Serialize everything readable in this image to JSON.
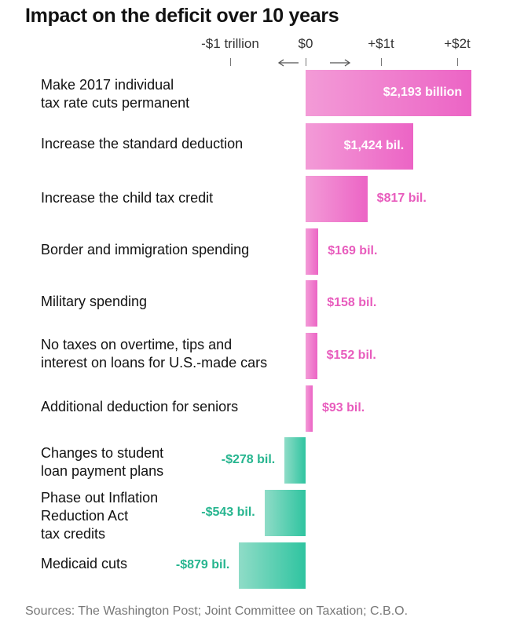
{
  "title": "Impact on the deficit over 10 years",
  "axis": {
    "ticks": [
      {
        "value": -1000,
        "label": "-$1 trillion"
      },
      {
        "value": 0,
        "label": "$0"
      },
      {
        "value": 1000,
        "label": "+$1t"
      },
      {
        "value": 2000,
        "label": "+$2t"
      }
    ],
    "arrows": [
      "left-arrow",
      "right-arrow"
    ]
  },
  "chart_data": {
    "type": "bar",
    "orientation": "horizontal",
    "title": "Impact on the deficit over 10 years",
    "unit": "billions of dollars",
    "xlim": [
      -1000,
      2000
    ],
    "categories": [
      "Make 2017 individual tax rate cuts permanent",
      "Increase the standard deduction",
      "Increase the child tax credit",
      "Border and immigration spending",
      "Military spending",
      "No taxes on overtime, tips and interest on loans for U.S.-made cars",
      "Additional deduction for seniors",
      "Changes to student loan payment plans",
      "Phase out Inflation Reduction Act tax credits",
      "Medicaid cuts"
    ],
    "label_lines": [
      [
        "Make 2017 individual",
        "tax rate cuts permanent"
      ],
      [
        "Increase the standard deduction"
      ],
      [
        "Increase the child tax credit"
      ],
      [
        "Border and immigration spending"
      ],
      [
        "Military spending"
      ],
      [
        "No taxes on overtime, tips and",
        "interest on loans for U.S.-made cars"
      ],
      [
        "Additional deduction for seniors"
      ],
      [
        "Changes to student",
        "loan payment plans"
      ],
      [
        "Phase out Inflation",
        "Reduction Act",
        "tax credits"
      ],
      [
        "Medicaid cuts"
      ]
    ],
    "values": [
      2193,
      1424,
      817,
      169,
      158,
      152,
      93,
      -278,
      -543,
      -879
    ],
    "value_labels": [
      "$2,193 billion",
      "$1,424 bil.",
      "$817 bil.",
      "$169 bil.",
      "$158 bil.",
      "$152 bil.",
      "$93 bil.",
      "-$278 bil.",
      "-$543 bil.",
      "-$879 bil."
    ],
    "colors": {
      "positive": "#ec64c5",
      "negative": "#2fc4a0"
    }
  },
  "source": "Sources: The Washington Post; Joint Committee on Taxation; C.B.O."
}
